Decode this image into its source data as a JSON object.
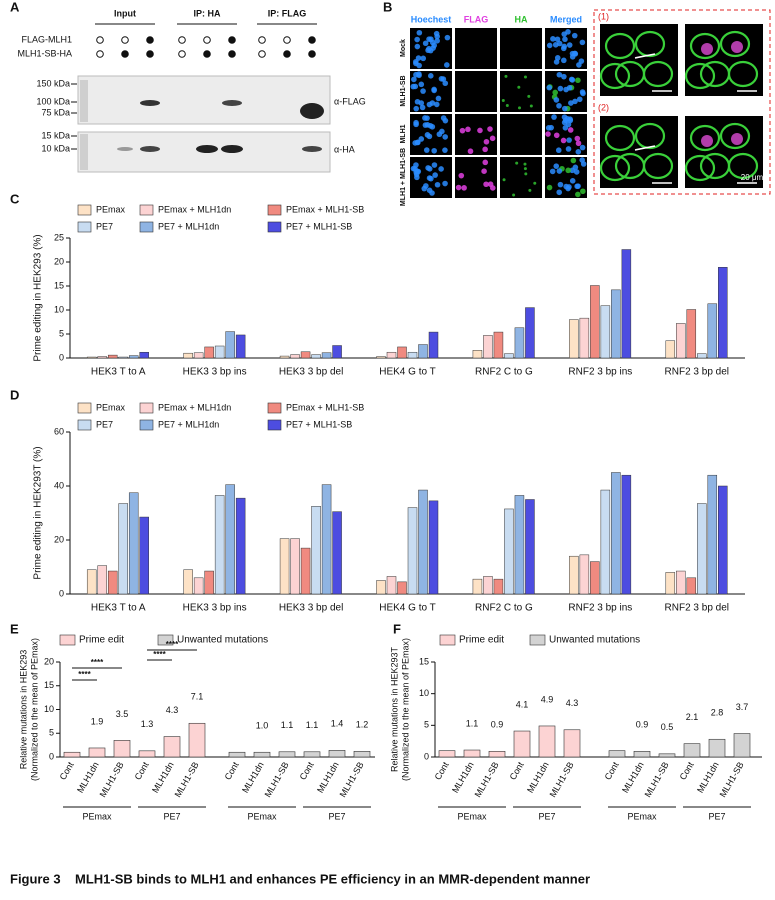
{
  "panel_labels": [
    "A",
    "B",
    "C",
    "D",
    "E",
    "F"
  ],
  "panel_a": {
    "lane_headers": [
      "Input",
      "IP: HA",
      "IP: FLAG"
    ],
    "conditions": [
      {
        "name": "FLAG-MLH1",
        "present": [
          false,
          false,
          true,
          false,
          false,
          true,
          false,
          false,
          true
        ]
      },
      {
        "name": "MLH1-SB-HA",
        "present": [
          false,
          true,
          true,
          false,
          true,
          true,
          false,
          true,
          true
        ]
      }
    ],
    "markers": [
      "150 kDa",
      "100 kDa",
      "75 kDa",
      "15 kDa",
      "10 kDa"
    ],
    "antibodies": [
      "α-FLAG",
      "α-HA"
    ]
  },
  "panel_b": {
    "channels": [
      "Hoechest",
      "FLAG",
      "HA",
      "Merged"
    ],
    "conditions": [
      "Mock",
      "MLH1-SB",
      "MLH1",
      "MLH1 + MLH1-SB"
    ],
    "insets": [
      "(1)",
      "(2)"
    ],
    "scale_bar": "20 μm"
  },
  "chart_data": [
    {
      "type": "bar",
      "ylabel": "Prime editing in HEK293 (%)",
      "categories": [
        "HEK3 T to A",
        "HEK3 3 bp ins",
        "HEK3 3 bp del",
        "HEK4 G to T",
        "RNF2 C to G",
        "RNF2 3 bp ins",
        "RNF2 3 bp del"
      ],
      "series": [
        {
          "name": "PEmax",
          "color": "#fde2c6",
          "values": [
            0.2,
            1.0,
            0.4,
            0.3,
            1.6,
            8.0,
            3.6
          ]
        },
        {
          "name": "PEmax + MLH1dn",
          "color": "#fcd3d3",
          "values": [
            0.3,
            1.1,
            0.7,
            1.2,
            4.7,
            8.3,
            7.2
          ]
        },
        {
          "name": "PEmax + MLH1-SB",
          "color": "#f08a80",
          "values": [
            0.6,
            2.3,
            1.3,
            2.3,
            5.4,
            15.1,
            10.1
          ]
        },
        {
          "name": "PE7",
          "color": "#c8dcf1",
          "values": [
            0.2,
            2.5,
            0.7,
            1.2,
            0.9,
            10.9,
            0.9
          ]
        },
        {
          "name": "PE7 + MLH1dn",
          "color": "#8fb4e3",
          "values": [
            0.5,
            5.5,
            1.1,
            2.8,
            6.3,
            14.2,
            11.3
          ]
        },
        {
          "name": "PE7 + MLH1-SB",
          "color": "#4d4de0",
          "values": [
            1.2,
            4.8,
            2.6,
            5.4,
            10.5,
            22.6,
            18.9
          ]
        }
      ],
      "ylim": [
        0,
        25
      ],
      "yticks": [
        0,
        5,
        10,
        15,
        20,
        25
      ]
    },
    {
      "type": "bar",
      "ylabel": "Prime editing in HEK293T (%)",
      "categories": [
        "HEK3 T to A",
        "HEK3 3 bp ins",
        "HEK3 3 bp del",
        "HEK4 G to T",
        "RNF2 C to G",
        "RNF2 3 bp ins",
        "RNF2 3 bp del"
      ],
      "series": [
        {
          "name": "PEmax",
          "color": "#fde2c6",
          "values": [
            9,
            9,
            20.5,
            5,
            5.5,
            14,
            8
          ]
        },
        {
          "name": "PEmax + MLH1dn",
          "color": "#fcd3d3",
          "values": [
            10.5,
            6,
            20.5,
            6.5,
            6.5,
            14.5,
            8.5
          ]
        },
        {
          "name": "PEmax + MLH1-SB",
          "color": "#f08a80",
          "values": [
            8.5,
            8.5,
            17,
            4.5,
            5.5,
            12,
            6
          ]
        },
        {
          "name": "PE7",
          "color": "#c8dcf1",
          "values": [
            33.5,
            36.5,
            32.5,
            32,
            31.5,
            38.5,
            33.5
          ]
        },
        {
          "name": "PE7 + MLH1dn",
          "color": "#8fb4e3",
          "values": [
            37.5,
            40.5,
            40.5,
            38.5,
            36.5,
            45,
            44
          ]
        },
        {
          "name": "PE7 + MLH1-SB",
          "color": "#4d4de0",
          "values": [
            28.5,
            35.5,
            30.5,
            34.5,
            35,
            44,
            40
          ]
        }
      ],
      "ylim": [
        0,
        60
      ],
      "yticks": [
        0,
        20,
        40,
        60
      ]
    },
    {
      "type": "bar",
      "ylabel": [
        "Relative mutations in HEK293",
        "(Normalized to the mean of PEmax)"
      ],
      "categories": [
        "Cont",
        "MLH1dn",
        "MLH1-SB",
        "Cont",
        "MLH1dn",
        "MLH1-SB",
        "Cont",
        "MLH1dn",
        "MLH1-SB",
        "Cont",
        "MLH1dn",
        "MLH1-SB"
      ],
      "groups": [
        "PEmax",
        "PE7",
        "PEmax",
        "PE7"
      ],
      "series": [
        {
          "name": "Prime edit",
          "color": "#fcd3d3",
          "values": [
            1.0,
            1.9,
            3.5,
            1.3,
            4.3,
            7.1,
            null,
            null,
            null,
            null,
            null,
            null
          ],
          "value_labels": [
            null,
            "1.9",
            "3.5",
            "1.3",
            "4.3",
            "7.1",
            null,
            null,
            null,
            null,
            null,
            null
          ]
        },
        {
          "name": "Unwanted mutations",
          "color": "#d3d3d3",
          "values": [
            null,
            null,
            null,
            null,
            null,
            null,
            1.0,
            1.0,
            1.1,
            1.1,
            1.4,
            1.2
          ],
          "value_labels": [
            null,
            null,
            null,
            null,
            null,
            null,
            null,
            "1.0",
            "1.1",
            "1.1",
            "1.4",
            "1.2"
          ]
        }
      ],
      "annotations": [
        "****",
        "****",
        "****",
        "****"
      ],
      "ylim": [
        0,
        20
      ],
      "yticks": [
        0,
        5,
        10,
        15,
        20
      ]
    },
    {
      "type": "bar",
      "ylabel": [
        "Relative mutations in HEK293T",
        "(Normalized to the mean of PEmax)"
      ],
      "categories": [
        "Cont",
        "MLH1dn",
        "MLH1-SB",
        "Cont",
        "MLH1dn",
        "MLH1-SB",
        "Cont",
        "MLH1dn",
        "MLH1-SB",
        "Cont",
        "MLH1dn",
        "MLH1-SB"
      ],
      "groups": [
        "PEmax",
        "PE7",
        "PEmax",
        "PE7"
      ],
      "series": [
        {
          "name": "Prime edit",
          "color": "#fcd3d3",
          "values": [
            1.0,
            1.1,
            0.9,
            4.1,
            4.9,
            4.3,
            null,
            null,
            null,
            null,
            null,
            null
          ],
          "value_labels": [
            null,
            "1.1",
            "0.9",
            "4.1",
            "4.9",
            "4.3",
            null,
            null,
            null,
            null,
            null,
            null
          ]
        },
        {
          "name": "Unwanted mutations",
          "color": "#d3d3d3",
          "values": [
            null,
            null,
            null,
            null,
            null,
            null,
            1.0,
            0.9,
            0.5,
            2.1,
            2.8,
            3.7
          ],
          "value_labels": [
            null,
            null,
            null,
            null,
            null,
            null,
            null,
            "0.9",
            "0.5",
            "2.1",
            "2.8",
            "3.7"
          ]
        }
      ],
      "ylim": [
        0,
        15
      ],
      "yticks": [
        0,
        5,
        10,
        15
      ]
    }
  ],
  "figure_label": "Figure 3",
  "caption": "MLH1-SB binds to MLH1 and enhances PE efficiency in an MMR-dependent manner"
}
